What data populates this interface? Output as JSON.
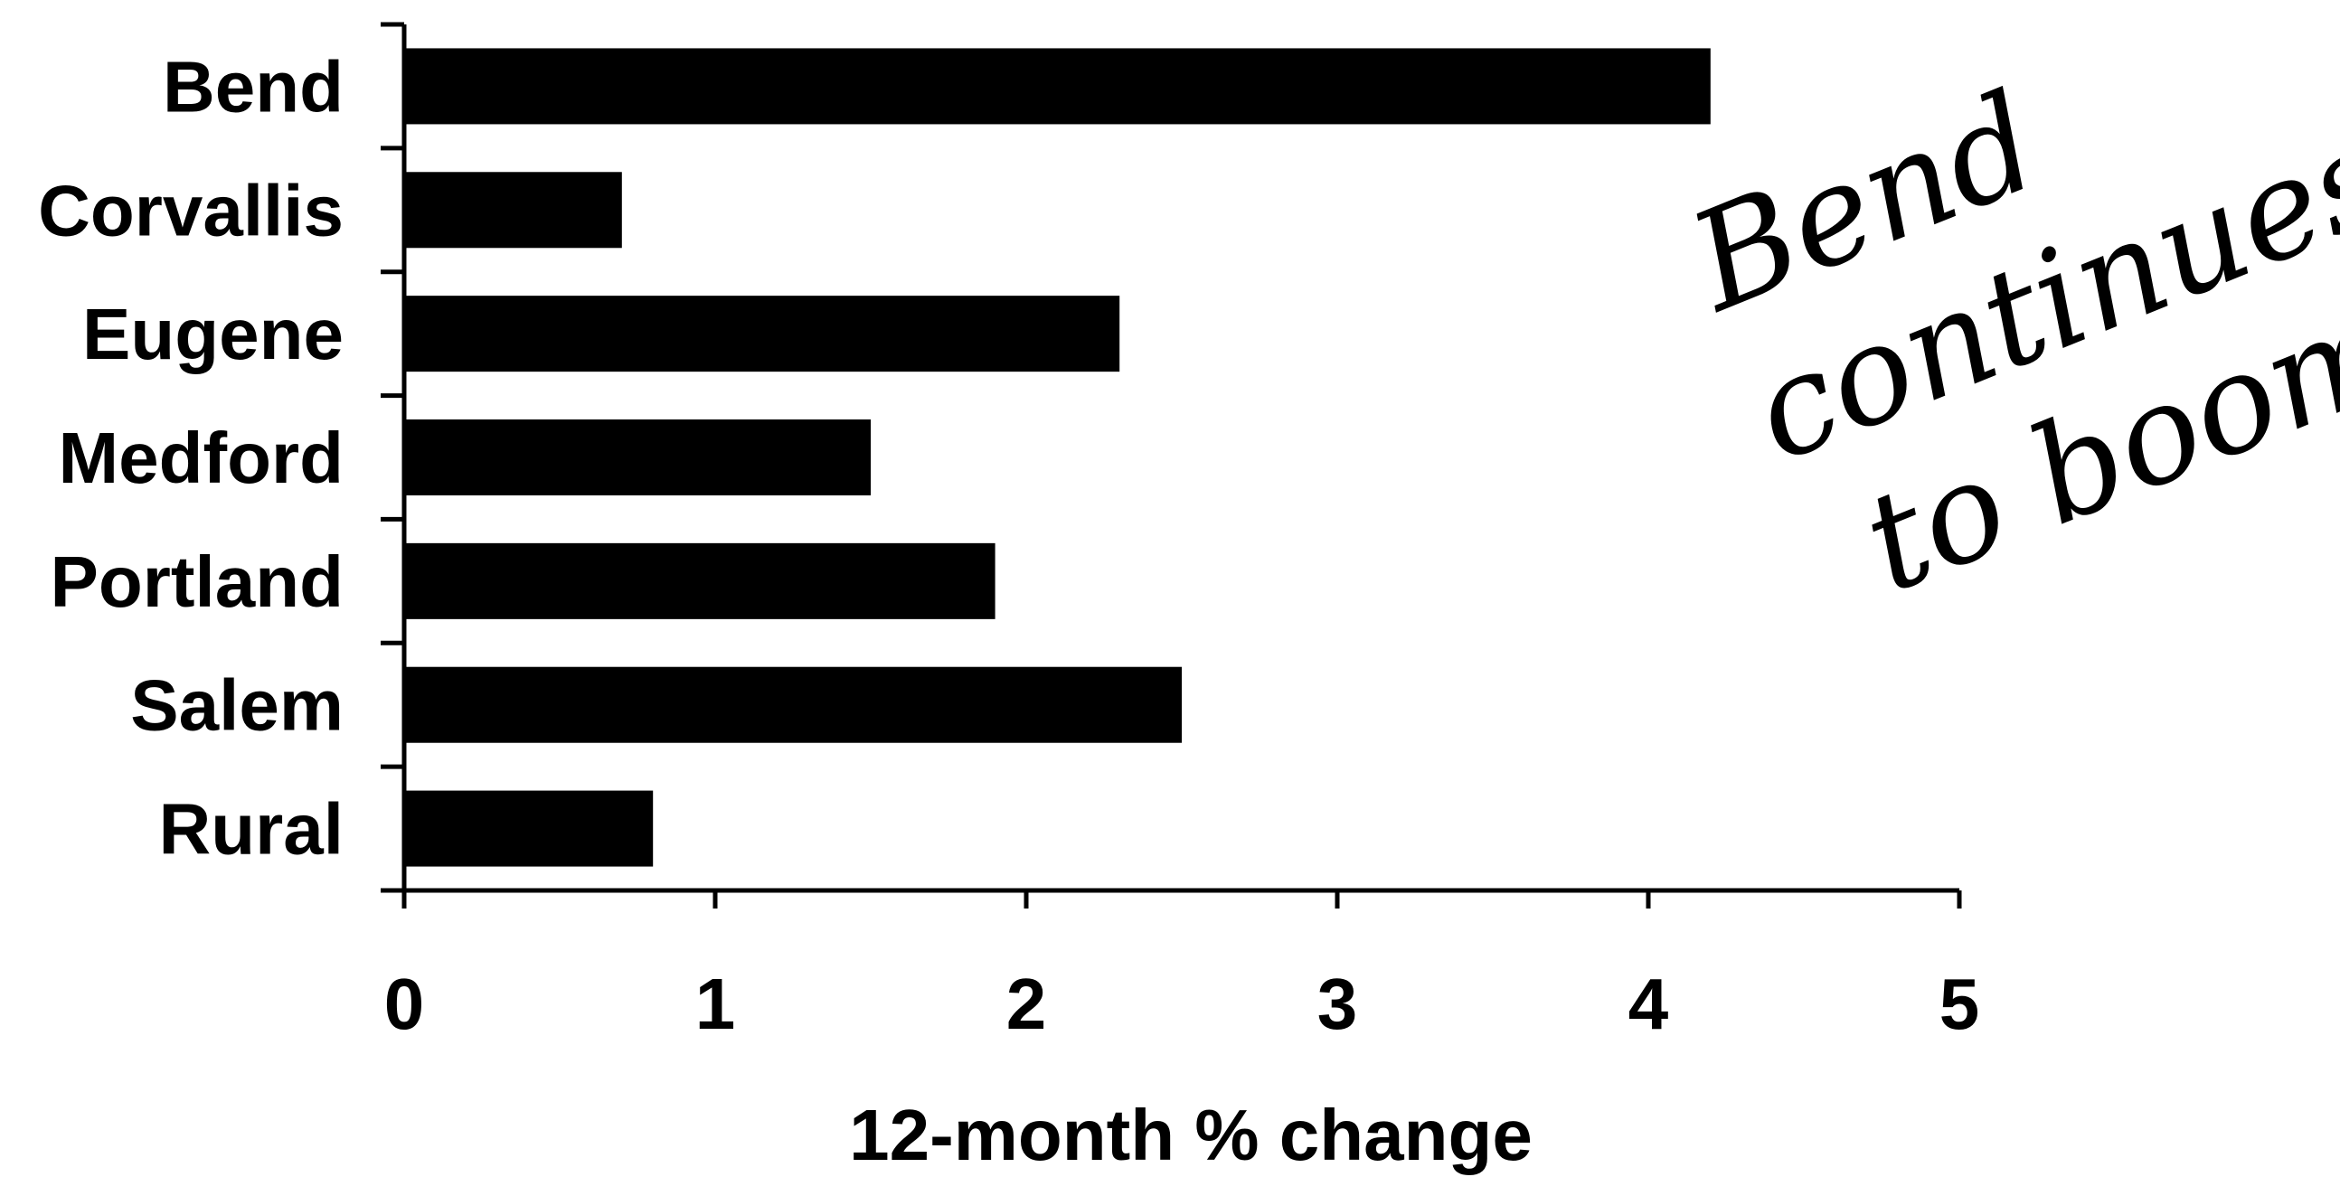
{
  "chart_data": {
    "type": "bar",
    "orientation": "horizontal",
    "categories": [
      "Bend",
      "Corvallis",
      "Eugene",
      "Medford",
      "Portland",
      "Salem",
      "Rural"
    ],
    "values": [
      4.2,
      0.7,
      2.3,
      1.5,
      1.9,
      2.5,
      0.8
    ],
    "xlabel": "12-month % change",
    "ylabel": "",
    "xlim": [
      0,
      5
    ],
    "xticks": [
      "0",
      "1",
      "2",
      "3",
      "4",
      "5"
    ],
    "grid": false,
    "bar_color": "#000000",
    "annotation": [
      "Bend",
      "continues",
      "to boom."
    ]
  }
}
